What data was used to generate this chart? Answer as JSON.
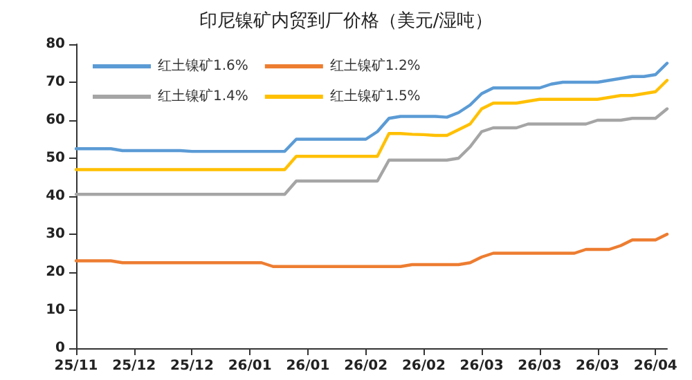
{
  "chart_data": {
    "type": "line",
    "title": "印尼镍矿内贸到厂价格（美元/湿吨）",
    "categories": [
      "25/11",
      null,
      null,
      null,
      null,
      "25/12",
      null,
      null,
      null,
      null,
      "25/12",
      null,
      null,
      null,
      null,
      "26/01",
      null,
      null,
      null,
      null,
      "26/01",
      null,
      null,
      null,
      null,
      "26/02",
      null,
      null,
      null,
      null,
      "26/02",
      null,
      null,
      null,
      null,
      "26/03",
      null,
      null,
      null,
      null,
      "26/03",
      null,
      null,
      null,
      null,
      "26/03",
      null,
      null,
      null,
      null,
      "26/04",
      null
    ],
    "series": [
      {
        "name": "红土镍矿1.6%",
        "color": "#5b9bd5",
        "values": [
          52.5,
          52.5,
          52.5,
          52.5,
          52,
          52,
          52,
          52,
          52,
          52,
          51.8,
          51.8,
          51.8,
          51.8,
          51.8,
          51.8,
          51.8,
          51.8,
          51.8,
          55,
          55,
          55,
          55,
          55,
          55,
          55,
          57,
          60.5,
          61,
          61,
          61,
          61,
          60.8,
          62,
          64,
          67,
          68.5,
          68.5,
          68.5,
          68.5,
          68.5,
          69.5,
          70,
          70,
          70,
          70,
          70.5,
          71,
          71.5,
          71.5,
          72,
          75
        ]
      },
      {
        "name": "红土镍矿1.2%",
        "color": "#ed7d31",
        "values": [
          23,
          23,
          23,
          23,
          22.5,
          22.5,
          22.5,
          22.5,
          22.5,
          22.5,
          22.5,
          22.5,
          22.5,
          22.5,
          22.5,
          22.5,
          22.5,
          21.5,
          21.5,
          21.5,
          21.5,
          21.5,
          21.5,
          21.5,
          21.5,
          21.5,
          21.5,
          21.5,
          21.5,
          22,
          22,
          22,
          22,
          22,
          22.5,
          24,
          25,
          25,
          25,
          25,
          25,
          25,
          25,
          25,
          26,
          26,
          26,
          27,
          28.5,
          28.5,
          28.5,
          30
        ]
      },
      {
        "name": "红土镍矿1.4%",
        "color": "#a5a5a5",
        "values": [
          40.5,
          40.5,
          40.5,
          40.5,
          40.5,
          40.5,
          40.5,
          40.5,
          40.5,
          40.5,
          40.5,
          40.5,
          40.5,
          40.5,
          40.5,
          40.5,
          40.5,
          40.5,
          40.5,
          44,
          44,
          44,
          44,
          44,
          44,
          44,
          44,
          49.5,
          49.5,
          49.5,
          49.5,
          49.5,
          49.5,
          50,
          53,
          57,
          58,
          58,
          58,
          59,
          59,
          59,
          59,
          59,
          59,
          60,
          60,
          60,
          60.5,
          60.5,
          60.5,
          63
        ]
      },
      {
        "name": "红土镍矿1.5%",
        "color": "#ffc000",
        "values": [
          47,
          47,
          47,
          47,
          47,
          47,
          47,
          47,
          47,
          47,
          47,
          47,
          47,
          47,
          47,
          47,
          47,
          47,
          47,
          50.5,
          50.5,
          50.5,
          50.5,
          50.5,
          50.5,
          50.5,
          50.5,
          56.5,
          56.5,
          56.3,
          56.2,
          56,
          56,
          57.5,
          59,
          63,
          64.5,
          64.5,
          64.5,
          65,
          65.5,
          65.5,
          65.5,
          65.5,
          65.5,
          65.5,
          66,
          66.5,
          66.5,
          67,
          67.5,
          70.5
        ]
      }
    ],
    "ylim": [
      0,
      80
    ],
    "yticks": [
      0,
      10,
      20,
      30,
      40,
      50,
      60,
      70,
      80
    ],
    "grid": false,
    "legend": "top",
    "marker": "none",
    "line_style": "solid"
  }
}
